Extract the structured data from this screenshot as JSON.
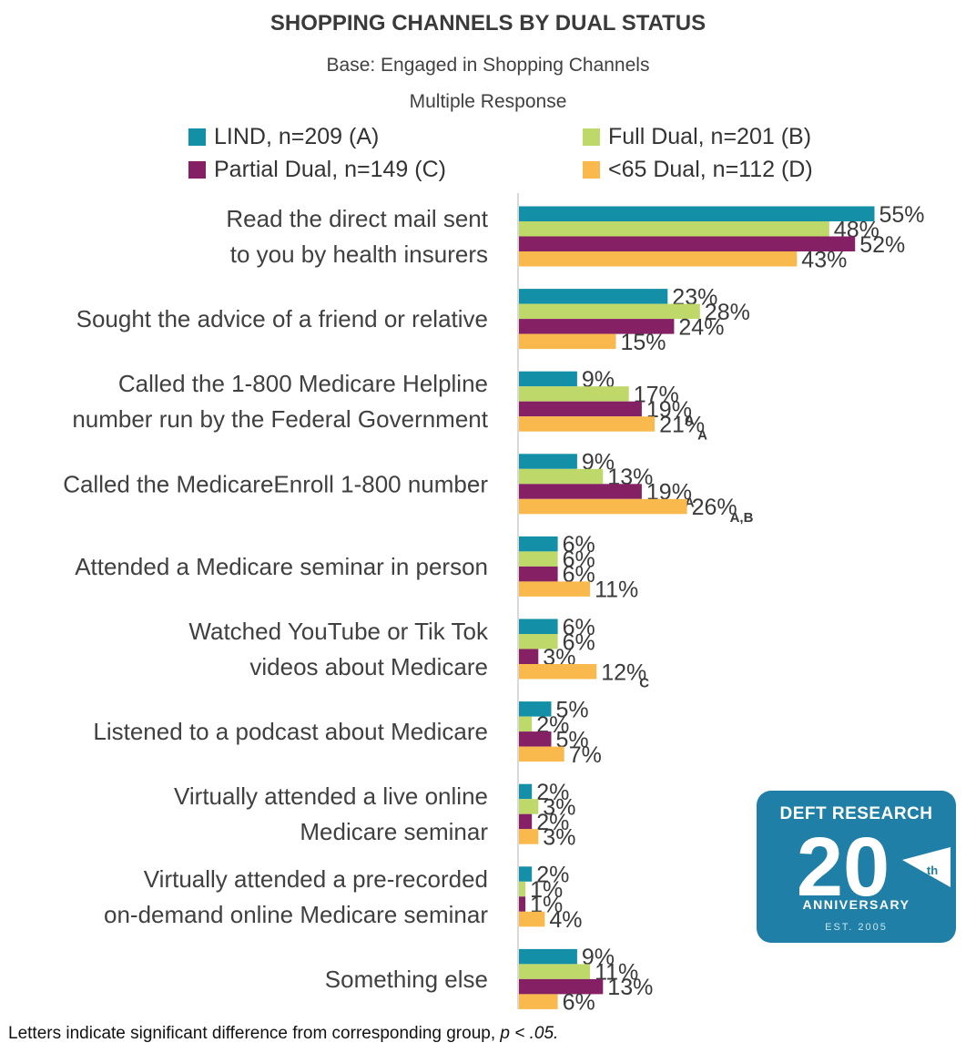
{
  "header": {
    "title": "SHOPPING CHANNELS BY DUAL STATUS",
    "subtitle": "Base: Engaged in Shopping Channels",
    "note": "Multiple Response"
  },
  "footnote": {
    "prefix": "Letters indicate significant difference from corresponding group, ",
    "p": "p",
    "suffix": " < .05."
  },
  "logo": {
    "brand": "DEFT RESEARCH",
    "number": "20",
    "ordinal": "th",
    "anniversary": "ANNIVERSARY",
    "est": "EST. 2005",
    "color": "#1f7fa6"
  },
  "chart_data": {
    "type": "bar",
    "orientation": "horizontal",
    "title": "SHOPPING CHANNELS BY DUAL STATUS",
    "xlim": [
      0,
      60
    ],
    "grid": false,
    "legend_position": "top",
    "categories": [
      [
        "Read the direct mail sent",
        "to you by health insurers"
      ],
      [
        "Sought the advice of a friend or relative"
      ],
      [
        "Called the 1-800 Medicare Helpline",
        "number run by the Federal Government"
      ],
      [
        "Called the MedicareEnroll 1-800 number"
      ],
      [
        "Attended a Medicare seminar in person"
      ],
      [
        "Watched YouTube or Tik Tok",
        "videos about Medicare"
      ],
      [
        "Listened to a podcast about Medicare"
      ],
      [
        "Virtually attended a live online",
        "Medicare seminar"
      ],
      [
        "Virtually attended a pre-recorded",
        "on-demand online Medicare seminar"
      ],
      [
        "Something else"
      ]
    ],
    "series": [
      {
        "name": "LIND, n=209 (A)",
        "color": "#138fa8",
        "values": [
          55,
          23,
          9,
          9,
          6,
          6,
          5,
          2,
          2,
          9
        ],
        "sig": [
          "",
          "",
          "",
          "",
          "",
          "",
          "",
          "",
          "",
          ""
        ]
      },
      {
        "name": "Full Dual, n=201 (B)",
        "color": "#bed86a",
        "values": [
          48,
          28,
          17,
          13,
          6,
          6,
          2,
          3,
          1,
          11
        ],
        "sig": [
          "",
          "",
          "",
          "",
          "",
          "",
          "",
          "",
          "",
          ""
        ]
      },
      {
        "name": "Partial Dual, n=149 (C)",
        "color": "#842063",
        "values": [
          52,
          24,
          19,
          19,
          6,
          3,
          5,
          2,
          1,
          13
        ],
        "sig": [
          "",
          "",
          "A",
          "A",
          "",
          "",
          "",
          "",
          "",
          ""
        ]
      },
      {
        "name": "<65 Dual, n=112 (D)",
        "color": "#f9b94c",
        "values": [
          43,
          15,
          21,
          26,
          11,
          12,
          7,
          3,
          4,
          6
        ],
        "sig": [
          "",
          "",
          "A",
          "A,B",
          "",
          "C",
          "",
          "",
          "",
          ""
        ]
      }
    ],
    "value_suffix": "%"
  }
}
